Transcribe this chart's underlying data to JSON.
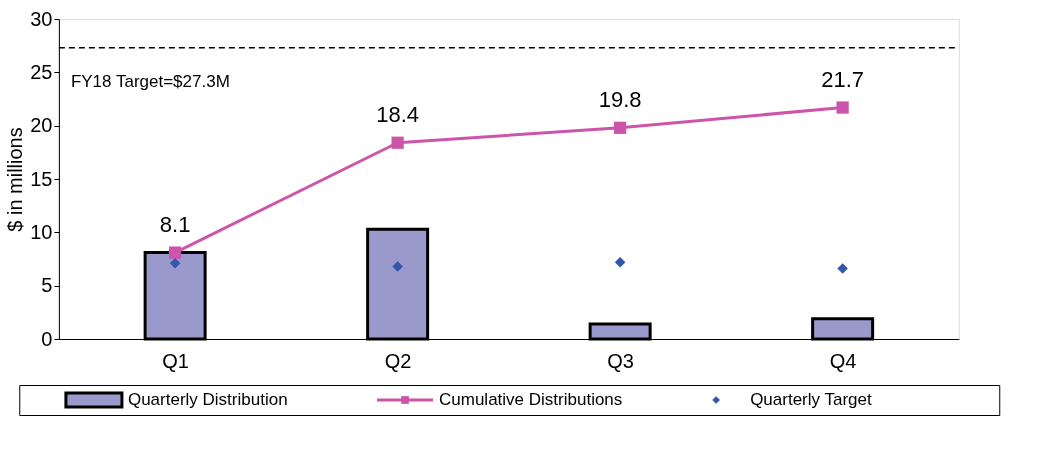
{
  "chart_data": {
    "type": "bar",
    "ylabel": "$ in millions",
    "categories": [
      "Q1",
      "Q2",
      "Q3",
      "Q4"
    ],
    "series": [
      {
        "name": "Quarterly Distribution",
        "color": "#9999cc",
        "values": [
          8.1,
          10.3,
          1.4,
          1.9
        ]
      },
      {
        "name": "Cumulative Distributions",
        "type": "line",
        "color": "#cc55aa",
        "marker": "square",
        "values": [
          8.1,
          18.4,
          19.8,
          21.7
        ],
        "value_labels": [
          "8.1",
          "18.4",
          "19.8",
          "21.7"
        ]
      },
      {
        "name": "Quarterly Target",
        "type": "scatter",
        "color": "#3355aa",
        "marker": "diamond",
        "values": [
          7.1,
          6.8,
          7.2,
          6.6
        ]
      }
    ],
    "ylim": [
      0,
      30
    ],
    "yticks": [
      0,
      5,
      10,
      15,
      20,
      25,
      30
    ],
    "grid": false,
    "legend": "bottom",
    "ref_lines": [
      {
        "axis": "y",
        "value": 27.3,
        "label": "FY18 Target=$27.3M",
        "line_style": "dashed",
        "color": "#000000"
      }
    ]
  }
}
